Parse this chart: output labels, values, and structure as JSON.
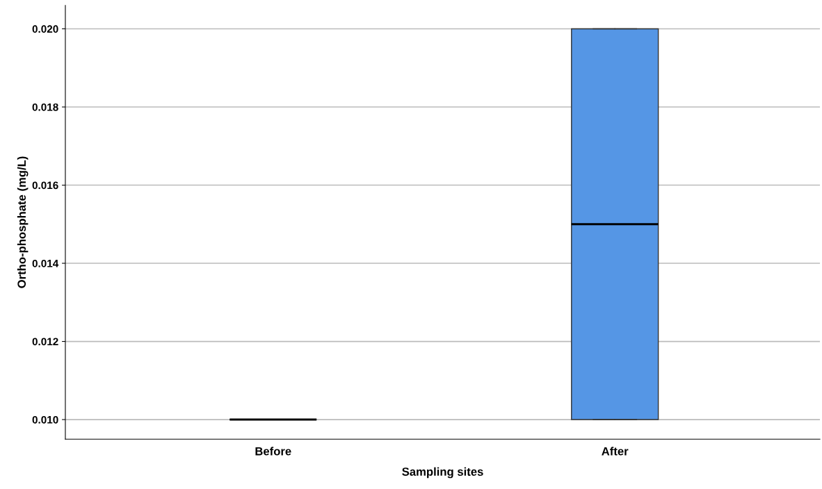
{
  "chart_data": {
    "type": "box",
    "xlabel": "Sampling sites",
    "ylabel": "Ortho-phosphate (mg/L)",
    "categories": [
      "Before",
      "After"
    ],
    "boxes": [
      {
        "low": 0.01,
        "q1": 0.01,
        "median": 0.01,
        "q3": 0.01,
        "high": 0.01
      },
      {
        "low": 0.01,
        "q1": 0.01,
        "median": 0.015,
        "q3": 0.02,
        "high": 0.02
      }
    ],
    "colors": [
      "#000000",
      "#5596e5"
    ],
    "ylim": [
      0.0095,
      0.0206
    ],
    "yticks": [
      {
        "value": 0.01,
        "label": "0.010"
      },
      {
        "value": 0.012,
        "label": "0.012"
      },
      {
        "value": 0.014,
        "label": "0.014"
      },
      {
        "value": 0.016,
        "label": "0.016"
      },
      {
        "value": 0.018,
        "label": "0.018"
      },
      {
        "value": 0.02,
        "label": "0.020"
      }
    ],
    "grid": "y"
  }
}
